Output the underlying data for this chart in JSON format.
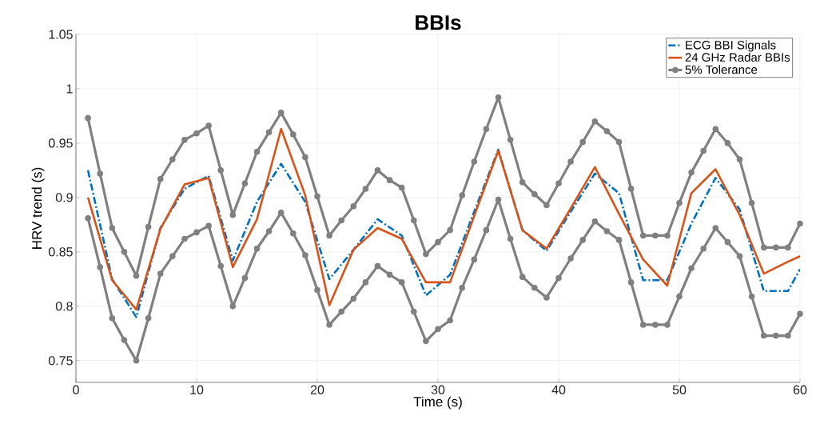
{
  "chart_data": {
    "type": "line",
    "title": "BBIs",
    "xlabel": "Time (s)",
    "ylabel": "HRV trend (s)",
    "xlim": [
      0,
      60
    ],
    "xticks": [
      0,
      10,
      20,
      30,
      40,
      50,
      60
    ],
    "ylim": [
      0.73,
      1.05
    ],
    "yticks": [
      0.75,
      0.8,
      0.85,
      0.9,
      0.95,
      1,
      1.05
    ],
    "grid": true,
    "legend": "top right",
    "series": [
      {
        "name": "ECG BBI Signals",
        "color": "#0072bd",
        "line_style": "dashed",
        "marker": "none",
        "x": [
          1,
          3,
          5,
          7,
          9,
          11,
          13,
          15,
          17,
          19,
          21,
          23,
          25,
          27,
          29,
          31,
          33,
          35,
          37,
          39,
          41,
          43,
          45,
          47,
          49,
          51,
          53,
          55,
          57,
          59,
          60
        ],
        "values": [
          0.925,
          0.825,
          0.79,
          0.872,
          0.908,
          0.92,
          0.842,
          0.896,
          0.931,
          0.896,
          0.825,
          0.852,
          0.88,
          0.865,
          0.81,
          0.829,
          0.887,
          0.944,
          0.87,
          0.851,
          0.887,
          0.922,
          0.904,
          0.824,
          0.824,
          0.876,
          0.918,
          0.889,
          0.814,
          0.814,
          0.834
        ]
      },
      {
        "name": "24 GHz Radar BBIs",
        "color": "#d95319",
        "line_style": "solid",
        "marker": "none",
        "x": [
          1,
          3,
          5,
          7,
          9,
          11,
          13,
          15,
          17,
          19,
          21,
          23,
          25,
          27,
          29,
          31,
          33,
          35,
          37,
          39,
          41,
          43,
          45,
          47,
          49,
          51,
          53,
          55,
          57,
          59,
          60
        ],
        "values": [
          0.9,
          0.824,
          0.797,
          0.871,
          0.912,
          0.918,
          0.836,
          0.88,
          0.963,
          0.902,
          0.801,
          0.852,
          0.872,
          0.862,
          0.822,
          0.822,
          0.883,
          0.943,
          0.87,
          0.853,
          0.89,
          0.928,
          0.885,
          0.843,
          0.819,
          0.904,
          0.926,
          0.884,
          0.83,
          0.841,
          0.846
        ]
      },
      {
        "name": "5% Tolerance",
        "color": "#808080",
        "line_style": "solid",
        "marker": "circle",
        "x": [
          1,
          2,
          3,
          4,
          5,
          6,
          7,
          8,
          9,
          10,
          11,
          12,
          13,
          14,
          15,
          16,
          17,
          18,
          19,
          20,
          21,
          22,
          23,
          24,
          25,
          26,
          27,
          28,
          29,
          30,
          31,
          32,
          33,
          34,
          35,
          36,
          37,
          38,
          39,
          40,
          41,
          42,
          43,
          44,
          45,
          46,
          47,
          48,
          49,
          50,
          51,
          52,
          53,
          54,
          55,
          56,
          57,
          58,
          59,
          60
        ],
        "values": [
          0.973,
          0.922,
          0.872,
          0.85,
          0.828,
          0.873,
          0.917,
          0.935,
          0.953,
          0.959,
          0.966,
          0.925,
          0.884,
          0.913,
          0.942,
          0.96,
          0.978,
          0.958,
          0.937,
          0.901,
          0.865,
          0.879,
          0.892,
          0.908,
          0.925,
          0.916,
          0.909,
          0.879,
          0.848,
          0.859,
          0.87,
          0.902,
          0.933,
          0.963,
          0.992,
          0.953,
          0.914,
          0.903,
          0.893,
          0.913,
          0.933,
          0.951,
          0.97,
          0.961,
          0.951,
          0.908,
          0.865,
          0.865,
          0.865,
          0.895,
          0.923,
          0.943,
          0.963,
          0.95,
          0.935,
          0.895,
          0.854,
          0.854,
          0.854,
          0.876
        ]
      },
      {
        "color": "#808080",
        "line_style": "solid",
        "marker": "circle",
        "x": [
          1,
          2,
          3,
          4,
          5,
          6,
          7,
          8,
          9,
          10,
          11,
          12,
          13,
          14,
          15,
          16,
          17,
          18,
          19,
          20,
          21,
          22,
          23,
          24,
          25,
          26,
          27,
          28,
          29,
          30,
          31,
          32,
          33,
          34,
          35,
          36,
          37,
          38,
          39,
          40,
          41,
          42,
          43,
          44,
          45,
          46,
          47,
          48,
          49,
          50,
          51,
          52,
          53,
          54,
          55,
          56,
          57,
          58,
          59,
          60
        ],
        "values": [
          0.881,
          0.836,
          0.789,
          0.769,
          0.75,
          0.789,
          0.83,
          0.846,
          0.862,
          0.868,
          0.874,
          0.837,
          0.8,
          0.826,
          0.853,
          0.869,
          0.886,
          0.867,
          0.847,
          0.815,
          0.783,
          0.795,
          0.807,
          0.822,
          0.837,
          0.829,
          0.822,
          0.795,
          0.768,
          0.779,
          0.787,
          0.817,
          0.843,
          0.87,
          0.898,
          0.862,
          0.827,
          0.817,
          0.808,
          0.826,
          0.844,
          0.861,
          0.878,
          0.869,
          0.861,
          0.822,
          0.783,
          0.783,
          0.783,
          0.809,
          0.835,
          0.853,
          0.872,
          0.859,
          0.846,
          0.809,
          0.773,
          0.773,
          0.773,
          0.793
        ]
      }
    ]
  }
}
